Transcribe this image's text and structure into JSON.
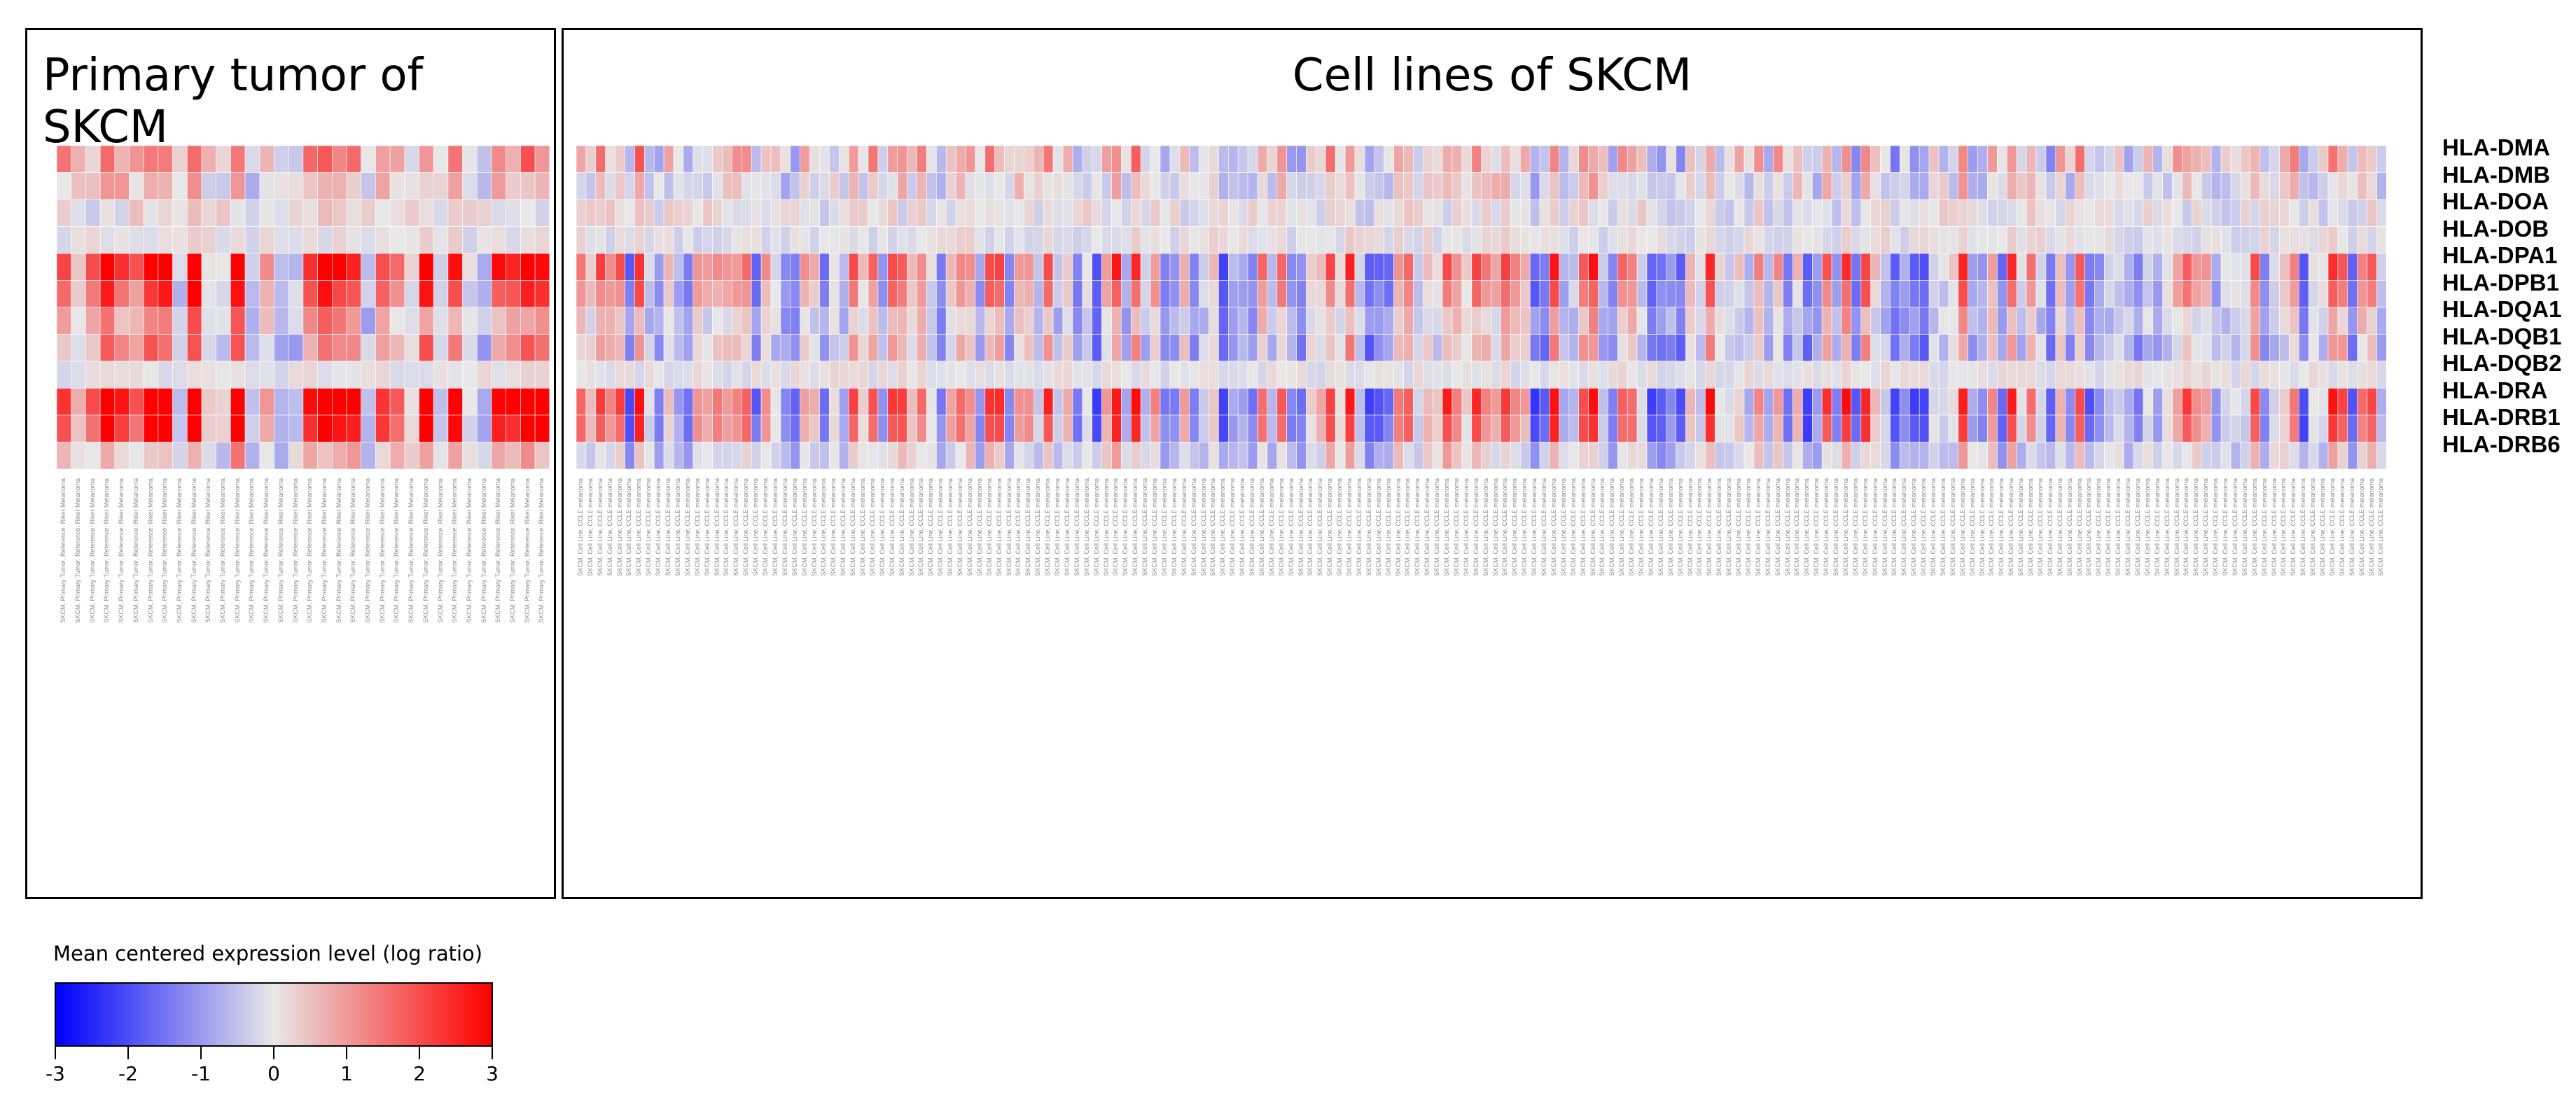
{
  "chart_data": [
    {
      "type": "heatmap",
      "title": "Primary tumor of SKCM",
      "rows": [
        "HLA-DMA",
        "HLA-DMB",
        "HLA-DOA",
        "HLA-DOB",
        "HLA-DPA1",
        "HLA-DPB1",
        "HLA-DQA1",
        "HLA-DQB1",
        "HLA-DQB2",
        "HLA-DRA",
        "HLA-DRB1",
        "HLA-DRB6"
      ],
      "n_columns": 34,
      "column_label": "SKCM, Primary Tumor, Reference: Riker Melanoma",
      "value_range": [
        -3,
        3
      ],
      "seed": 7
    },
    {
      "type": "heatmap",
      "title": "Cell lines of SKCM",
      "rows": [
        "HLA-DMA",
        "HLA-DMB",
        "HLA-DOA",
        "HLA-DOB",
        "HLA-DPA1",
        "HLA-DPB1",
        "HLA-DQA1",
        "HLA-DQB1",
        "HLA-DQB2",
        "HLA-DRA",
        "HLA-DRB1",
        "HLA-DRB6"
      ],
      "n_columns": 186,
      "column_label": "SKCM, Cell Line, CCLE melanoma",
      "value_range": [
        -3,
        3
      ],
      "seed": 19
    }
  ],
  "legend": {
    "title": "Mean centered expression level (log ratio)",
    "ticks": [
      "-3",
      "-2",
      "-1",
      "0",
      "1",
      "2",
      "3"
    ],
    "colors": {
      "low": "#0000ff",
      "mid": "#e8e8e8",
      "high": "#ff0000"
    }
  }
}
